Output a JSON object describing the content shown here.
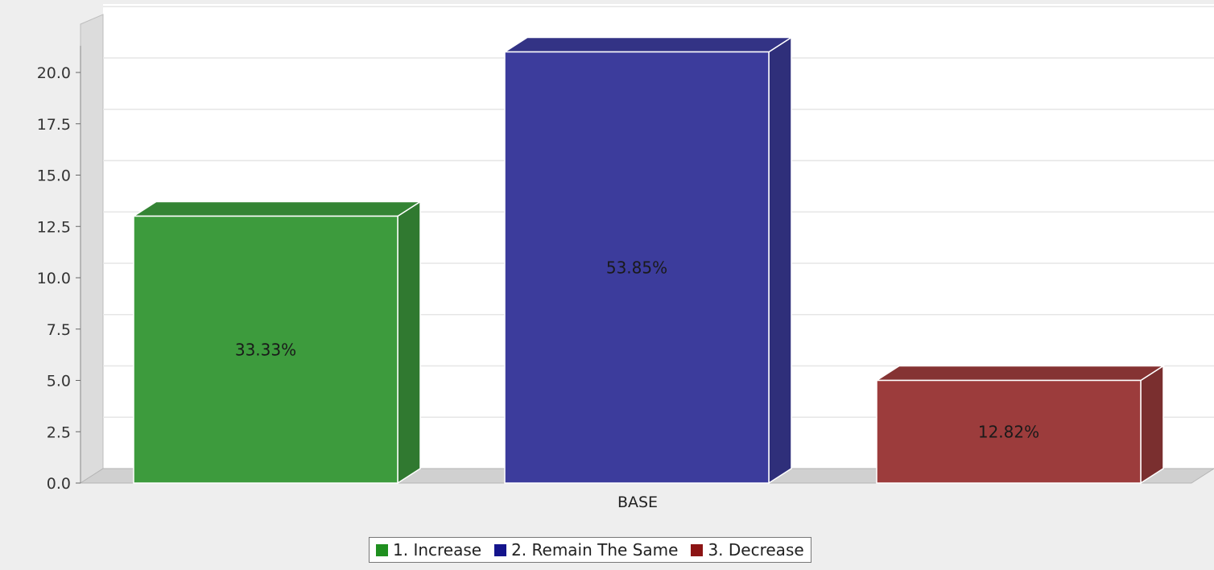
{
  "chart_data": {
    "type": "bar",
    "style": "3d",
    "title": "",
    "xlabel": "",
    "ylabel": "",
    "categories": [
      "BASE"
    ],
    "ylim": [
      0,
      20.0
    ],
    "yticks": [
      "0.0",
      "2.5",
      "5.0",
      "7.5",
      "10.0",
      "12.5",
      "15.0",
      "17.5",
      "20.0"
    ],
    "grid": true,
    "legend_position": "bottom",
    "series": [
      {
        "name": "1. Increase",
        "values": [
          13
        ],
        "label": "33.33%",
        "color": "#3d9b3d"
      },
      {
        "name": "2. Remain The Same",
        "values": [
          21
        ],
        "label": "53.85%",
        "color": "#3c3c9c"
      },
      {
        "name": "3. Decrease",
        "values": [
          5
        ],
        "label": "12.82%",
        "color": "#9c3c3c"
      }
    ]
  },
  "legend": {
    "items": [
      {
        "label": "1. Increase",
        "color": "#1f8f1f"
      },
      {
        "label": "2. Remain The Same",
        "color": "#14148c"
      },
      {
        "label": "3. Decrease",
        "color": "#8c1414"
      }
    ]
  }
}
